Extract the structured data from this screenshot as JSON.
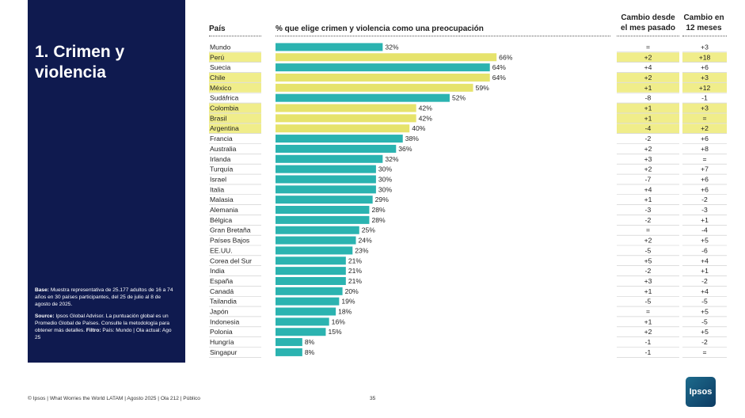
{
  "panel": {
    "title": "1. Crimen y violencia",
    "base_label": "Base:",
    "base_text": "Muestra representativa de 25.177 adultos de 16 a 74 años en 30 países participantes, del 25 de julio al 8 de agosto de 2025.",
    "source_label": "Source:",
    "source_text": "Ipsos Global Advisor. La puntuación global es un Promedio Global de Países. Consulte la metodología para obtener más detalles.",
    "filter_label": "Filtro:",
    "filter_text": "País: Mundo | Ola actual: Ago 25"
  },
  "headers": {
    "country": "País",
    "metric": "% que elige crimen y violencia como una preocupación",
    "change_month": "Cambio desde el mes pasado",
    "change_year": "Cambio en 12 meses"
  },
  "footer": {
    "text": "© Ipsos | What Worries the World LATAM | Agosto 2025 | Ola 212 | Público",
    "page": "35"
  },
  "logo": "Ipsos",
  "colors": {
    "bar_default": "#2bb3b0",
    "bar_highlight": "#e6e36c",
    "row_highlight": "#f0ed8a",
    "panel": "#0f1a4f"
  },
  "chart_data": {
    "type": "bar",
    "orientation": "horizontal",
    "xlim": [
      0,
      100
    ],
    "value_suffix": "%",
    "rows": [
      {
        "country": "Mundo",
        "value": 32,
        "change_month": "=",
        "change_year": "+3",
        "highlight": false
      },
      {
        "country": "Perú",
        "value": 66,
        "change_month": "+2",
        "change_year": "+18",
        "highlight": true
      },
      {
        "country": "Suecia",
        "value": 64,
        "change_month": "+4",
        "change_year": "+6",
        "highlight": false
      },
      {
        "country": "Chile",
        "value": 64,
        "change_month": "+2",
        "change_year": "+3",
        "highlight": true
      },
      {
        "country": "México",
        "value": 59,
        "change_month": "+1",
        "change_year": "+12",
        "highlight": true
      },
      {
        "country": "Sudáfrica",
        "value": 52,
        "change_month": "-8",
        "change_year": "-1",
        "highlight": false
      },
      {
        "country": "Colombia",
        "value": 42,
        "change_month": "+1",
        "change_year": "+3",
        "highlight": true
      },
      {
        "country": "Brasil",
        "value": 42,
        "change_month": "+1",
        "change_year": "=",
        "highlight": true
      },
      {
        "country": "Argentina",
        "value": 40,
        "change_month": "-4",
        "change_year": "+2",
        "highlight": true
      },
      {
        "country": "Francia",
        "value": 38,
        "change_month": "-2",
        "change_year": "+6",
        "highlight": false
      },
      {
        "country": "Australia",
        "value": 36,
        "change_month": "+2",
        "change_year": "+8",
        "highlight": false
      },
      {
        "country": "Irlanda",
        "value": 32,
        "change_month": "+3",
        "change_year": "=",
        "highlight": false
      },
      {
        "country": "Turquía",
        "value": 30,
        "change_month": "+2",
        "change_year": "+7",
        "highlight": false
      },
      {
        "country": "Israel",
        "value": 30,
        "change_month": "-7",
        "change_year": "+6",
        "highlight": false
      },
      {
        "country": "Italia",
        "value": 30,
        "change_month": "+4",
        "change_year": "+6",
        "highlight": false
      },
      {
        "country": "Malasia",
        "value": 29,
        "change_month": "+1",
        "change_year": "-2",
        "highlight": false
      },
      {
        "country": "Alemania",
        "value": 28,
        "change_month": "-3",
        "change_year": "-3",
        "highlight": false
      },
      {
        "country": "Bélgica",
        "value": 28,
        "change_month": "-2",
        "change_year": "+1",
        "highlight": false
      },
      {
        "country": "Gran Bretaña",
        "value": 25,
        "change_month": "=",
        "change_year": "-4",
        "highlight": false
      },
      {
        "country": "Países Bajos",
        "value": 24,
        "change_month": "+2",
        "change_year": "+5",
        "highlight": false
      },
      {
        "country": "EE.UU.",
        "value": 23,
        "change_month": "-5",
        "change_year": "-6",
        "highlight": false
      },
      {
        "country": "Corea del Sur",
        "value": 21,
        "change_month": "+5",
        "change_year": "+4",
        "highlight": false
      },
      {
        "country": "India",
        "value": 21,
        "change_month": "-2",
        "change_year": "+1",
        "highlight": false
      },
      {
        "country": "España",
        "value": 21,
        "change_month": "+3",
        "change_year": "-2",
        "highlight": false
      },
      {
        "country": "Canadá",
        "value": 20,
        "change_month": "+1",
        "change_year": "+4",
        "highlight": false
      },
      {
        "country": "Tailandia",
        "value": 19,
        "change_month": "-5",
        "change_year": "-5",
        "highlight": false
      },
      {
        "country": "Japón",
        "value": 18,
        "change_month": "=",
        "change_year": "+5",
        "highlight": false
      },
      {
        "country": "Indonesia",
        "value": 16,
        "change_month": "+1",
        "change_year": "-5",
        "highlight": false
      },
      {
        "country": "Polonia",
        "value": 15,
        "change_month": "+2",
        "change_year": "+5",
        "highlight": false
      },
      {
        "country": "Hungría",
        "value": 8,
        "change_month": "-1",
        "change_year": "-2",
        "highlight": false
      },
      {
        "country": "Singapur",
        "value": 8,
        "change_month": "-1",
        "change_year": "=",
        "highlight": false
      }
    ]
  }
}
